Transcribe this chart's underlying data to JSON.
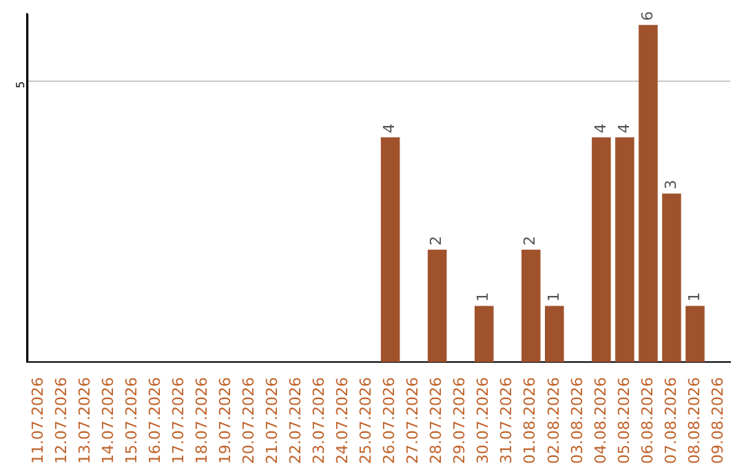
{
  "chart_data": {
    "type": "bar",
    "categories": [
      "11.07.2026",
      "12.07.2026",
      "13.07.2026",
      "14.07.2026",
      "15.07.2026",
      "16.07.2026",
      "17.07.2026",
      "18.07.2026",
      "19.07.2026",
      "20.07.2026",
      "21.07.2026",
      "22.07.2026",
      "23.07.2026",
      "24.07.2026",
      "25.07.2026",
      "26.07.2026",
      "27.07.2026",
      "28.07.2026",
      "29.07.2026",
      "30.07.2026",
      "31.07.2026",
      "01.08.2026",
      "02.08.2026",
      "03.08.2026",
      "04.08.2026",
      "05.08.2026",
      "06.08.2026",
      "07.08.2026",
      "08.08.2026",
      "09.08.2026"
    ],
    "values": [
      null,
      null,
      null,
      null,
      null,
      null,
      null,
      null,
      null,
      null,
      null,
      null,
      null,
      null,
      null,
      4,
      null,
      2,
      null,
      1,
      null,
      2,
      1,
      null,
      4,
      4,
      6,
      3,
      1,
      null
    ],
    "data_labels": true,
    "ylim": [
      0,
      6.2
    ],
    "yticks": [
      5
    ],
    "grid": "y",
    "color": "#a0522d"
  }
}
